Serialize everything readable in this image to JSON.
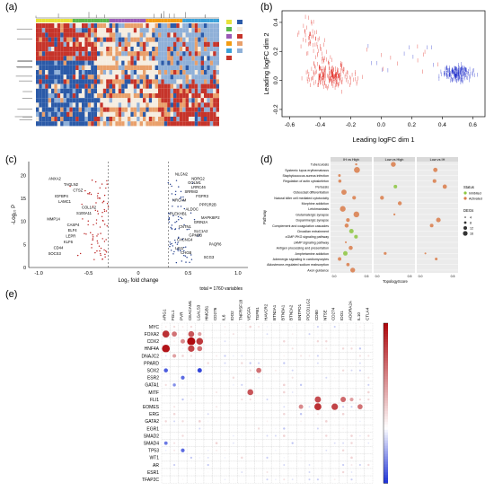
{
  "panels": {
    "a": {
      "label": "(a)"
    },
    "b": {
      "label": "(b)"
    },
    "c": {
      "label": "(c)"
    },
    "d": {
      "label": "(d)"
    },
    "e": {
      "label": "(e)"
    }
  },
  "chart_data": [
    {
      "type": "heatmap",
      "panel": "a",
      "rows": 22,
      "cols": 60,
      "colors": [
        "#2b5aa8",
        "#f6ede0",
        "#c6342a",
        "#e9a06b",
        "#8fb0d8"
      ]
    },
    {
      "type": "scatter",
      "panel": "b",
      "xlabel": "Leading logFC dim 1",
      "ylabel": "Leading logFC dim 2",
      "x_ticks": [
        "-0.6",
        "-0.4",
        "-0.2",
        "0.0",
        "0.2",
        "0.4",
        "0.6"
      ],
      "y_ticks": [
        "-0.2",
        "0.0",
        "0.2",
        "0.4"
      ],
      "xlim": [
        -0.65,
        0.68
      ],
      "ylim": [
        -0.25,
        0.48
      ],
      "series": [
        {
          "color": "#e0231b",
          "center": [
            -0.33,
            0.02
          ],
          "spread": [
            0.1,
            0.07
          ],
          "count": 280,
          "tail_to": [
            -0.5,
            0.38
          ]
        },
        {
          "color": "#1f2dc9",
          "center": [
            0.5,
            0.04
          ],
          "spread": [
            0.07,
            0.045
          ],
          "count": 190
        }
      ]
    },
    {
      "type": "scatter",
      "panel": "c",
      "xlabel": "Log₂ fold change",
      "ylabel": "-Log₁₀ P",
      "x_ticks": [
        "-1.0",
        "-0.5",
        "0",
        "0.5",
        "1.0"
      ],
      "y_ticks": [
        "0",
        "5",
        "10",
        "15",
        "20"
      ],
      "footer": "total = 1760 variables",
      "xlim": [
        -1.1,
        1.1
      ],
      "ylim": [
        0,
        23
      ],
      "cutoff_x": [
        -0.3,
        0.3
      ],
      "left_labels": [
        "ANXA2",
        "TAGLN2",
        "CTSZ",
        "IGFBP4",
        "LAMC1",
        "COL1A2",
        "S100A11",
        "MMP14",
        "CASP4",
        "ELF4",
        "LEPR",
        "KLF6",
        "CD44",
        "SOCS3"
      ],
      "right_labels": [
        "NLGN2",
        "NDRG2",
        "GOLM1",
        "LRRC46",
        "SRRM3",
        "FGFR3",
        "NRCAM",
        "PPP2R2B",
        "ALDOC",
        "PLEKHB1",
        "MAPK8IP2",
        "GRIN2A",
        "CNTN1",
        "SLC1A2",
        "GPM6B",
        "CACNG4",
        "PAQR6",
        "LGI1",
        "CHGB",
        "SCG3"
      ]
    },
    {
      "type": "scatter",
      "panel": "d",
      "xlabel": "TopologyScore",
      "ylabel": "Pathway",
      "facets": [
        "IH vs High",
        "Low vs High",
        "Low vs IH"
      ],
      "pathways": [
        "Tuberculosis",
        "Systemic lupus erythematosus",
        "Staphylococcus aureus infection",
        "Regulation of actin cytoskeleton",
        "Pertussis",
        "Osteoclast differentiation",
        "Natural killer cell mediated cytotoxicity",
        "Morphine addiction",
        "Leishmaniasis",
        "Glutamatergic synapse",
        "Dopaminergic synapse",
        "Complement and coagulation cascades",
        "Circadian entrainment",
        "cGMP-PKG signaling pathway",
        "cAMP signaling pathway",
        "Antigen processing and presentation",
        "Amphetamine addiction",
        "Adrenergic signaling in cardiomyocytes",
        "Aldosterone-regulated sodium reabsorption",
        "Axon guidance"
      ],
      "legend_status_title": "Status",
      "legend_status": [
        "Inhibited",
        "Activated"
      ],
      "legend_degs_title": "DEGs",
      "legend_degs": [
        "4",
        "8",
        "12",
        "16"
      ]
    },
    {
      "type": "heatmap",
      "panel": "e",
      "rows": [
        "MYC",
        "FOXA2",
        "CDX2",
        "HNF4A",
        "DNAJC2",
        "PPARD",
        "SOX2",
        "ESR2",
        "GATA1",
        "MITF",
        "FLI1",
        "EOMES",
        "ERG",
        "GATA2",
        "EGR1",
        "SMAD2",
        "SMAD4",
        "TP53",
        "WT1",
        "AR",
        "ESR1",
        "TFAP2C"
      ],
      "cols": [
        "ARG1",
        "FGL1",
        "PVR",
        "CEACAM1",
        "LGALS3",
        "HMGB1",
        "CD276",
        "IL6",
        "IDO2",
        "TNFRSF18",
        "VEGFA",
        "TGFB1",
        "HAVCR2",
        "BTN2A1",
        "BTN3A1",
        "BTN2A2",
        "ENTPD1",
        "PDCD1LG2",
        "CD80",
        "NT5E",
        "CD274",
        "IDO1",
        "ADORA2A",
        "IL10",
        "CTLA4"
      ],
      "scale_ticks": [
        "0.52",
        "0.44",
        "0.36",
        "0.29",
        "0.21",
        "0.13",
        "0.05",
        "-0.03",
        "-0.11",
        "-0.19",
        "-0.27"
      ],
      "vmin": -0.27,
      "vmax": 0.52,
      "highlight_cells": [
        {
          "r": "FOXA2",
          "c": "ARG1",
          "v": 0.44
        },
        {
          "r": "FOXA2",
          "c": "FGL1",
          "v": 0.3
        },
        {
          "r": "FOXA2",
          "c": "CEACAM1",
          "v": 0.36
        },
        {
          "r": "FOXA2",
          "c": "LGALS3",
          "v": 0.2
        },
        {
          "r": "CDX2",
          "c": "CEACAM1",
          "v": 0.52
        },
        {
          "r": "CDX2",
          "c": "LGALS3",
          "v": 0.42
        },
        {
          "r": "CDX2",
          "c": "PVR",
          "v": 0.25
        },
        {
          "r": "HNF4A",
          "c": "ARG1",
          "v": 0.5
        },
        {
          "r": "HNF4A",
          "c": "CEACAM1",
          "v": 0.4
        },
        {
          "r": "HNF4A",
          "c": "LGALS3",
          "v": 0.3
        },
        {
          "r": "DNAJC2",
          "c": "FGL1",
          "v": 0.2
        },
        {
          "r": "SOX2",
          "c": "TGFB1",
          "v": 0.3
        },
        {
          "r": "MITF",
          "c": "VEGFA",
          "v": 0.36
        },
        {
          "r": "FLI1",
          "c": "CD80",
          "v": 0.38
        },
        {
          "r": "FLI1",
          "c": "IDO1",
          "v": 0.32
        },
        {
          "r": "FLI1",
          "c": "ADORA2A",
          "v": 0.2
        },
        {
          "r": "EOMES",
          "c": "CD274",
          "v": 0.4
        },
        {
          "r": "EOMES",
          "c": "CD80",
          "v": 0.44
        },
        {
          "r": "EOMES",
          "c": "IL10",
          "v": 0.3
        },
        {
          "r": "EOMES",
          "c": "ENTPD1",
          "v": 0.25
        },
        {
          "r": "SOX2",
          "c": "LGALS3",
          "v": -0.25
        },
        {
          "r": "SOX2",
          "c": "ARG1",
          "v": -0.22
        },
        {
          "r": "ESR2",
          "c": "PVR",
          "v": -0.2
        },
        {
          "r": "GATA1",
          "c": "FGL1",
          "v": -0.15
        },
        {
          "r": "SMAD4",
          "c": "ARG1",
          "v": -0.18
        },
        {
          "r": "TP53",
          "c": "PVR",
          "v": -0.2
        }
      ]
    }
  ]
}
